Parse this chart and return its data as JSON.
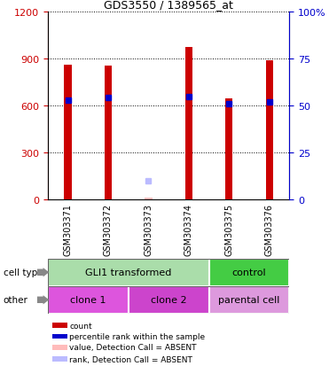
{
  "title": "GDS3550 / 1389565_at",
  "samples": [
    "GSM303371",
    "GSM303372",
    "GSM303373",
    "GSM303374",
    "GSM303375",
    "GSM303376"
  ],
  "count_values": [
    860,
    855,
    null,
    975,
    645,
    890
  ],
  "percentile_values": [
    635,
    650,
    null,
    660,
    610,
    625
  ],
  "absent_count_values": [
    null,
    null,
    10,
    null,
    null,
    null
  ],
  "absent_rank_values": [
    null,
    null,
    120,
    null,
    null,
    null
  ],
  "bar_color": "#cc0000",
  "percentile_color": "#0000cc",
  "absent_count_color": "#ffbbbb",
  "absent_rank_color": "#bbbbff",
  "ylim_left": [
    0,
    1200
  ],
  "ylim_right": [
    0,
    100
  ],
  "yticks_left": [
    0,
    300,
    600,
    900,
    1200
  ],
  "yticks_right": [
    0,
    25,
    50,
    75,
    100
  ],
  "ytick_right_labels": [
    "0",
    "25",
    "50",
    "75",
    "100%"
  ],
  "cell_type_groups": [
    {
      "label": "GLI1 transformed",
      "start": 0,
      "end": 4,
      "color": "#aaddaa"
    },
    {
      "label": "control",
      "start": 4,
      "end": 6,
      "color": "#44cc44"
    }
  ],
  "other_groups": [
    {
      "label": "clone 1",
      "start": 0,
      "end": 2,
      "color": "#dd55dd"
    },
    {
      "label": "clone 2",
      "start": 2,
      "end": 4,
      "color": "#cc44cc"
    },
    {
      "label": "parental cell",
      "start": 4,
      "end": 6,
      "color": "#dd99dd"
    }
  ],
  "cell_type_label": "cell type",
  "other_label": "other",
  "legend_items": [
    {
      "color": "#cc0000",
      "label": "count"
    },
    {
      "color": "#0000cc",
      "label": "percentile rank within the sample"
    },
    {
      "color": "#ffbbbb",
      "label": "value, Detection Call = ABSENT"
    },
    {
      "color": "#bbbbff",
      "label": "rank, Detection Call = ABSENT"
    }
  ],
  "bar_width": 0.18,
  "left_axis_color": "#cc0000",
  "right_axis_color": "#0000cc",
  "grid_color": "black",
  "sample_box_color": "#cccccc",
  "figure_bg": "#ffffff"
}
